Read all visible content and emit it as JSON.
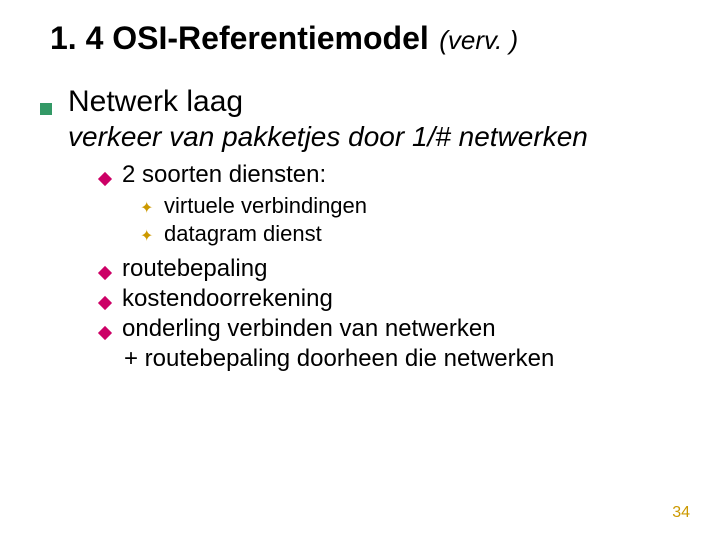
{
  "title": {
    "main": "1. 4 OSI-Referentiemodel",
    "suffix": "(verv. )"
  },
  "level1": {
    "heading": "Netwerk laag",
    "subheading": "verkeer van pakketjes door 1/# netwerken"
  },
  "level2a": {
    "text": "2 soorten diensten:"
  },
  "level3": {
    "items": [
      "virtuele verbindingen",
      "datagram dienst"
    ]
  },
  "level2b": {
    "items": [
      "routebepaling",
      "kostendoorrekening",
      "onderling verbinden van netwerken"
    ],
    "continuation": "+ routebepaling doorheen die netwerken"
  },
  "page_number": "34",
  "colors": {
    "square_bullet": "#339966",
    "diamond_bullet": "#cc0066",
    "chevron_bullet": "#cc9900",
    "page_number": "#cc9900",
    "text": "#000000",
    "background": "#ffffff"
  }
}
